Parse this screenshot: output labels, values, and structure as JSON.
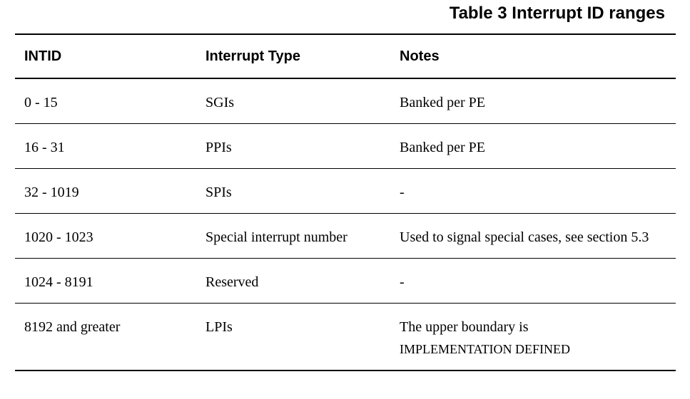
{
  "caption": "Table 3 Interrupt ID ranges",
  "headers": {
    "intid": "INTID",
    "type": "Interrupt Type",
    "notes": "Notes"
  },
  "rows": [
    {
      "intid": "0 - 15",
      "type": "SGIs",
      "notes": "Banked per PE"
    },
    {
      "intid": "16 - 31",
      "type": "PPIs",
      "notes": "Banked per PE"
    },
    {
      "intid": "32 - 1019",
      "type": "SPIs",
      "notes": "-"
    },
    {
      "intid": "1020 - 1023",
      "type": "Special interrupt number",
      "notes": "Used to signal special cases, see section 5.3"
    },
    {
      "intid": "1024 - 8191",
      "type": "Reserved",
      "notes": "-"
    },
    {
      "intid": "8192 and greater",
      "type": "LPIs",
      "notes": "The upper boundary is",
      "notes_sc": "IMPLEMENTATION DEFINED"
    }
  ]
}
